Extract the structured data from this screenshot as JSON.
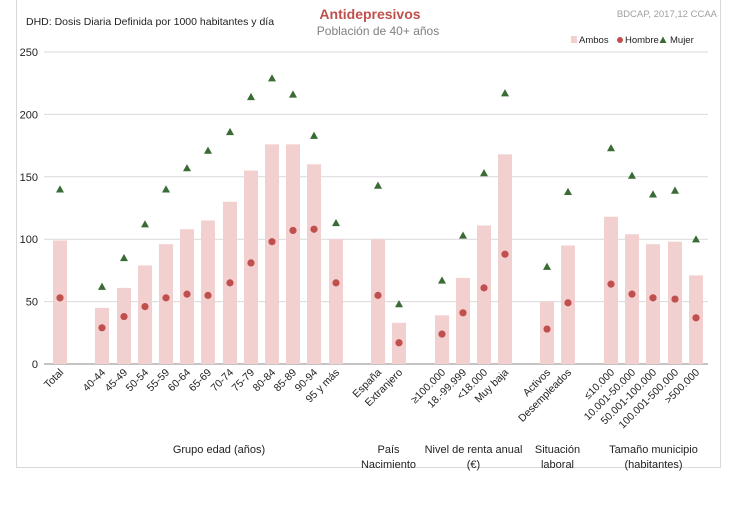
{
  "chart_data": {
    "type": "bar",
    "title": "Antidepresivos",
    "subtitle": "Población de 40+ años",
    "ylabel": "DHD: Dosis Diaria Definida por 1000 habitantes  y día",
    "source": "BDCAP, 2017,12 CCAA",
    "ylim": [
      0,
      250
    ],
    "yticks": [
      "0",
      "50",
      "100",
      "150",
      "200",
      "250"
    ],
    "grid": true,
    "legend_position": "top-right",
    "categories": [
      "Total",
      "40-44",
      "45-49",
      "50-54",
      "55-59",
      "60-64",
      "65-69",
      "70-74",
      "75-79",
      "80-84",
      "85-89",
      "90-94",
      "95 y más",
      "España",
      "Extranjero",
      "≥100.000",
      "18.-99.999",
      "<18.000",
      "Muy baja",
      "Activos",
      "Desempleados",
      "≤10.000",
      "10.001-50.000",
      "50.001-100.000",
      "100.001-500.000",
      ">500.000"
    ],
    "series": [
      {
        "name": "Ambos",
        "kind": "bar",
        "color": "#f2d0d0",
        "values": [
          99,
          45,
          61,
          79,
          96,
          108,
          115,
          130,
          155,
          176,
          176,
          160,
          100,
          100,
          33,
          39,
          69,
          111,
          168,
          50,
          95,
          118,
          104,
          96,
          98,
          71
        ]
      },
      {
        "name": "Hombre",
        "kind": "marker-circle",
        "color": "#c0504d",
        "values": [
          53,
          29,
          38,
          46,
          53,
          56,
          55,
          65,
          81,
          98,
          107,
          108,
          65,
          55,
          17,
          24,
          41,
          61,
          88,
          28,
          49,
          64,
          56,
          53,
          52,
          37
        ]
      },
      {
        "name": "Mujer",
        "kind": "marker-triangle",
        "color": "#3a6b35",
        "values": [
          140,
          62,
          85,
          112,
          140,
          157,
          171,
          186,
          214,
          229,
          216,
          183,
          113,
          143,
          48,
          67,
          103,
          153,
          217,
          78,
          138,
          173,
          151,
          136,
          139,
          100
        ]
      }
    ],
    "groups": [
      {
        "label": "Grupo edad (años)",
        "lines": [
          "Grupo edad (años)"
        ]
      },
      {
        "label": "País Nacimiento",
        "lines": [
          "País",
          "Nacimiento"
        ]
      },
      {
        "label": "Nivel de renta anual (€)",
        "lines": [
          "Nivel de renta anual",
          "(€)"
        ]
      },
      {
        "label": "Situación laboral",
        "lines": [
          "Situación",
          "laboral"
        ]
      },
      {
        "label": "Tamaño municipio (habitantes)",
        "lines": [
          "Tamaño municipio",
          "(habitantes)"
        ]
      }
    ]
  }
}
